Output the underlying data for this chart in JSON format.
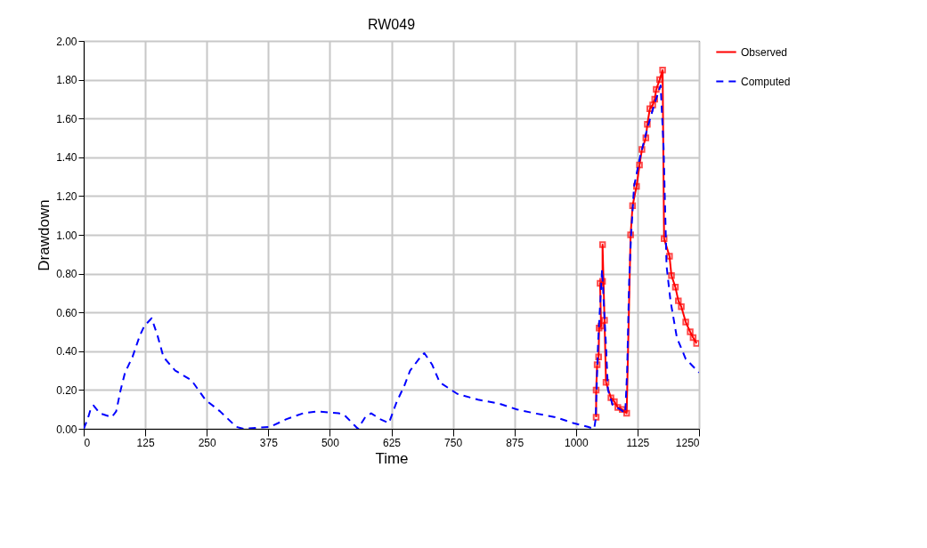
{
  "chart_data": {
    "type": "line",
    "title": "RW049",
    "xlabel": "Time",
    "ylabel": "Drawdown",
    "xlim": [
      0,
      1250
    ],
    "ylim": [
      0,
      2
    ],
    "xticks": [
      0,
      125,
      250,
      375,
      500,
      625,
      750,
      875,
      1000,
      1125,
      1250
    ],
    "yticks": [
      {
        "value": 0,
        "label": "0.00"
      },
      {
        "value": 0.2,
        "label": "0.20"
      },
      {
        "value": 0.4,
        "label": "0.40"
      },
      {
        "value": 0.6,
        "label": "0.60"
      },
      {
        "value": 0.8,
        "label": "0.80"
      },
      {
        "value": 1,
        "label": "1.00"
      },
      {
        "value": 1.2,
        "label": "1.20"
      },
      {
        "value": 1.4,
        "label": "1.40"
      },
      {
        "value": 1.6,
        "label": "1.60"
      },
      {
        "value": 1.8,
        "label": "1.80"
      },
      {
        "value": 2,
        "label": "2.00"
      }
    ],
    "grid": true,
    "legend": "top right",
    "series": [
      {
        "name": "Observed",
        "color": "#ff0000",
        "marker": "square",
        "line_style": "solid",
        "x": [
          1041,
          1041,
          1043,
          1046,
          1047,
          1051,
          1049,
          1054,
          1054,
          1058,
          1061,
          1071,
          1078,
          1085,
          1094,
          1103,
          1111,
          1115,
          1123,
          1129,
          1134,
          1142,
          1145,
          1150,
          1156,
          1160,
          1163,
          1170,
          1176,
          1179,
          1190,
          1194,
          1202,
          1208,
          1214,
          1223,
          1232,
          1238,
          1245
        ],
        "values": [
          0.06,
          0.2,
          0.33,
          0.37,
          0.52,
          0.53,
          0.75,
          0.76,
          0.95,
          0.56,
          0.24,
          0.16,
          0.14,
          0.11,
          0.1,
          0.08,
          1.0,
          1.15,
          1.25,
          1.36,
          1.44,
          1.5,
          1.57,
          1.65,
          1.67,
          1.7,
          1.75,
          1.8,
          1.85,
          0.98,
          0.89,
          0.79,
          0.73,
          0.66,
          0.63,
          0.55,
          0.5,
          0.47,
          0.44
        ]
      },
      {
        "name": "Computed",
        "color": "#0000ff",
        "marker": "none",
        "line_style": "dashed",
        "x": [
          0,
          8,
          14,
          20,
          33,
          57,
          66,
          75,
          84,
          99,
          114,
          123,
          138,
          150,
          162,
          186,
          219,
          247,
          277,
          310,
          325,
          379,
          412,
          446,
          476,
          518,
          530,
          557,
          572,
          584,
          602,
          620,
          636,
          651,
          663,
          687,
          692,
          708,
          723,
          759,
          801,
          844,
          880,
          916,
          958,
          994,
          1024,
          1037,
          1040,
          1045,
          1053,
          1061,
          1065,
          1075,
          1090,
          1100,
          1104,
          1108,
          1112,
          1118,
          1130,
          1145,
          1160,
          1172,
          1178,
          1184,
          1192,
          1205,
          1223,
          1250
        ],
        "values": [
          0,
          0.05,
          0.1,
          0.12,
          0.08,
          0.06,
          0.09,
          0.2,
          0.29,
          0.37,
          0.48,
          0.53,
          0.57,
          0.48,
          0.37,
          0.3,
          0.25,
          0.15,
          0.09,
          0.01,
          0,
          0.01,
          0.05,
          0.08,
          0.09,
          0.08,
          0.07,
          0,
          0.06,
          0.08,
          0.05,
          0.03,
          0.14,
          0.22,
          0.3,
          0.38,
          0.39,
          0.33,
          0.24,
          0.18,
          0.15,
          0.13,
          0.1,
          0.08,
          0.06,
          0.03,
          0.01,
          0,
          0.05,
          0.45,
          0.82,
          0.43,
          0.2,
          0.12,
          0.1,
          0.08,
          0.3,
          0.76,
          1.0,
          1.25,
          1.4,
          1.55,
          1.68,
          1.77,
          1.45,
          0.84,
          0.66,
          0.47,
          0.36,
          0.29
        ]
      }
    ]
  }
}
